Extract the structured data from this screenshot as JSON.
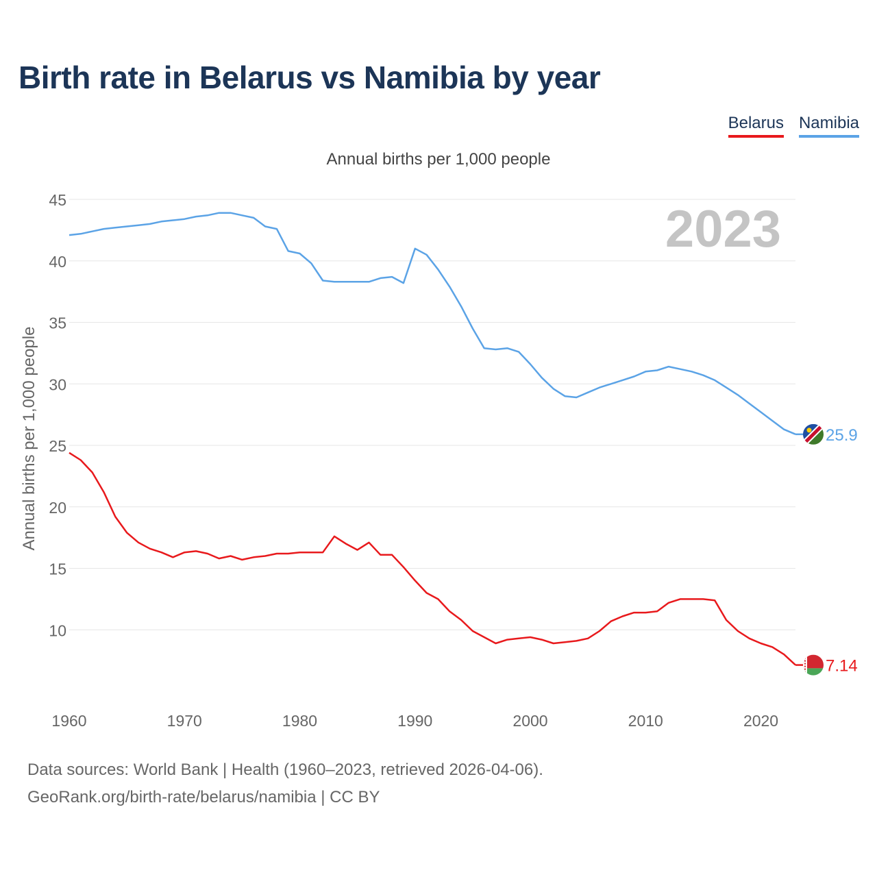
{
  "title": "Birth rate in Belarus vs Namibia by year",
  "legend": {
    "belarus_label": "Belarus",
    "namibia_label": "Namibia"
  },
  "footer": {
    "line1": "Data sources: World Bank | Health (1960–2023, retrieved 2026-04-06).",
    "line2": "GeoRank.org/birth-rate/belarus/namibia | CC BY"
  },
  "colors": {
    "belarus": "#e8191c",
    "namibia": "#5ba3e6",
    "title": "#1c3557",
    "year_watermark": "#c4c4c4"
  },
  "chart_data": {
    "type": "line",
    "title": "Annual births per 1,000 people",
    "xlabel": "",
    "ylabel": "Annual births per 1,000 people",
    "xlim": [
      1960,
      2023
    ],
    "ylim": [
      5,
      45
    ],
    "yticks": [
      10,
      15,
      20,
      25,
      30,
      35,
      40,
      45
    ],
    "xticks": [
      1960,
      1970,
      1980,
      1990,
      2000,
      2010,
      2020
    ],
    "current_year": "2023",
    "grid": true,
    "x": [
      1960,
      1961,
      1962,
      1963,
      1964,
      1965,
      1966,
      1967,
      1968,
      1969,
      1970,
      1971,
      1972,
      1973,
      1974,
      1975,
      1976,
      1977,
      1978,
      1979,
      1980,
      1981,
      1982,
      1983,
      1984,
      1985,
      1986,
      1987,
      1988,
      1989,
      1990,
      1991,
      1992,
      1993,
      1994,
      1995,
      1996,
      1997,
      1998,
      1999,
      2000,
      2001,
      2002,
      2003,
      2004,
      2005,
      2006,
      2007,
      2008,
      2009,
      2010,
      2011,
      2012,
      2013,
      2014,
      2015,
      2016,
      2017,
      2018,
      2019,
      2020,
      2021,
      2022,
      2023
    ],
    "series": [
      {
        "name": "Belarus",
        "color": "#e8191c",
        "end_label": "7.14",
        "values": [
          24.4,
          23.8,
          22.8,
          21.2,
          19.2,
          17.9,
          17.1,
          16.6,
          16.3,
          15.9,
          16.3,
          16.4,
          16.2,
          15.8,
          16.0,
          15.7,
          15.9,
          16.0,
          16.2,
          16.2,
          16.3,
          16.3,
          16.3,
          17.6,
          17.0,
          16.5,
          17.1,
          16.1,
          16.1,
          15.1,
          14.0,
          13.0,
          12.5,
          11.5,
          10.8,
          9.9,
          9.4,
          8.9,
          9.2,
          9.3,
          9.4,
          9.2,
          8.9,
          9.0,
          9.1,
          9.3,
          9.9,
          10.7,
          11.1,
          11.4,
          11.4,
          11.5,
          12.2,
          12.5,
          12.5,
          12.5,
          12.4,
          10.8,
          9.9,
          9.3,
          8.9,
          8.6,
          8.0,
          7.14
        ]
      },
      {
        "name": "Namibia",
        "color": "#5ba3e6",
        "end_label": "25.9",
        "values": [
          42.1,
          42.2,
          42.4,
          42.6,
          42.7,
          42.8,
          42.9,
          43.0,
          43.2,
          43.3,
          43.4,
          43.6,
          43.7,
          43.9,
          43.9,
          43.7,
          43.5,
          42.8,
          42.6,
          40.8,
          40.6,
          39.8,
          38.4,
          38.3,
          38.3,
          38.3,
          38.3,
          38.6,
          38.7,
          38.2,
          41.0,
          40.5,
          39.3,
          37.9,
          36.3,
          34.5,
          32.9,
          32.8,
          32.9,
          32.6,
          31.6,
          30.5,
          29.6,
          29.0,
          28.9,
          29.3,
          29.7,
          30.0,
          30.3,
          30.6,
          31.0,
          31.1,
          31.4,
          31.2,
          31.0,
          30.7,
          30.3,
          29.7,
          29.1,
          28.4,
          27.7,
          27.0,
          26.3,
          25.9
        ]
      }
    ]
  }
}
